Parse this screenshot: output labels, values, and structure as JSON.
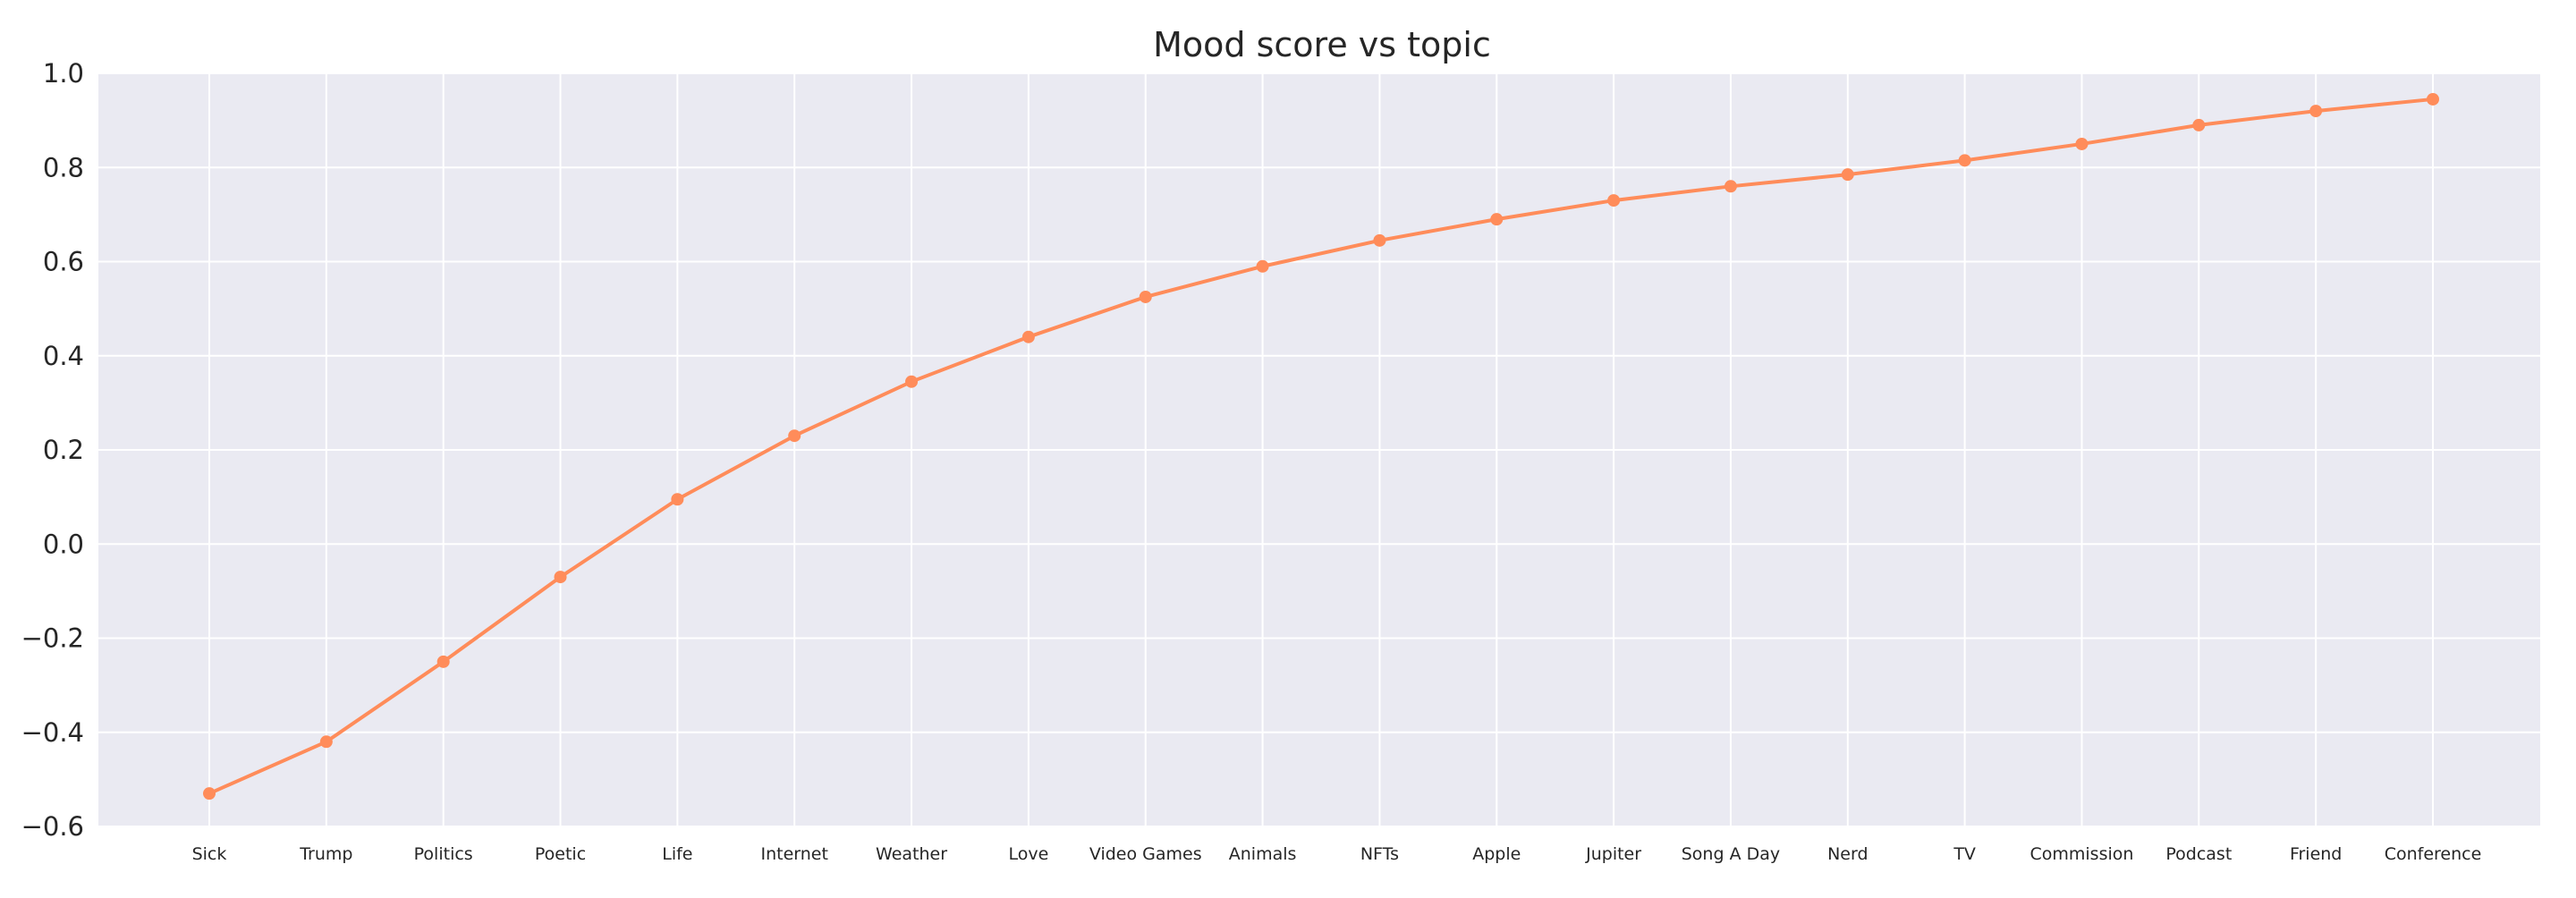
{
  "chart_data": {
    "type": "line",
    "title": "Mood score vs topic",
    "xlabel": "",
    "ylabel": "",
    "categories": [
      "Sick",
      "Trump",
      "Politics",
      "Poetic",
      "Life",
      "Internet",
      "Weather",
      "Love",
      "Video Games",
      "Animals",
      "NFTs",
      "Apple",
      "Jupiter",
      "Song A Day",
      "Nerd",
      "TV",
      "Commission",
      "Podcast",
      "Friend",
      "Conference"
    ],
    "series": [
      {
        "values": [
          -0.53,
          -0.42,
          -0.25,
          -0.07,
          0.095,
          0.23,
          0.345,
          0.44,
          0.525,
          0.59,
          0.645,
          0.69,
          0.73,
          0.76,
          0.785,
          0.815,
          0.85,
          0.89,
          0.92,
          0.945
        ],
        "color": "#ff8c5a"
      }
    ],
    "ylim": [
      -0.6,
      1.0
    ],
    "yticks": [
      -0.6,
      -0.4,
      -0.2,
      0.0,
      0.2,
      0.4,
      0.6,
      0.8,
      1.0
    ],
    "ytick_labels": [
      "−0.6",
      "−0.4",
      "−0.2",
      "0.0",
      "0.2",
      "0.4",
      "0.6",
      "0.8",
      "1.0"
    ],
    "grid": true,
    "legend": "none",
    "colors": {
      "plot_background": "#eaeaf2",
      "grid": "#ffffff",
      "text": "#262626"
    }
  }
}
